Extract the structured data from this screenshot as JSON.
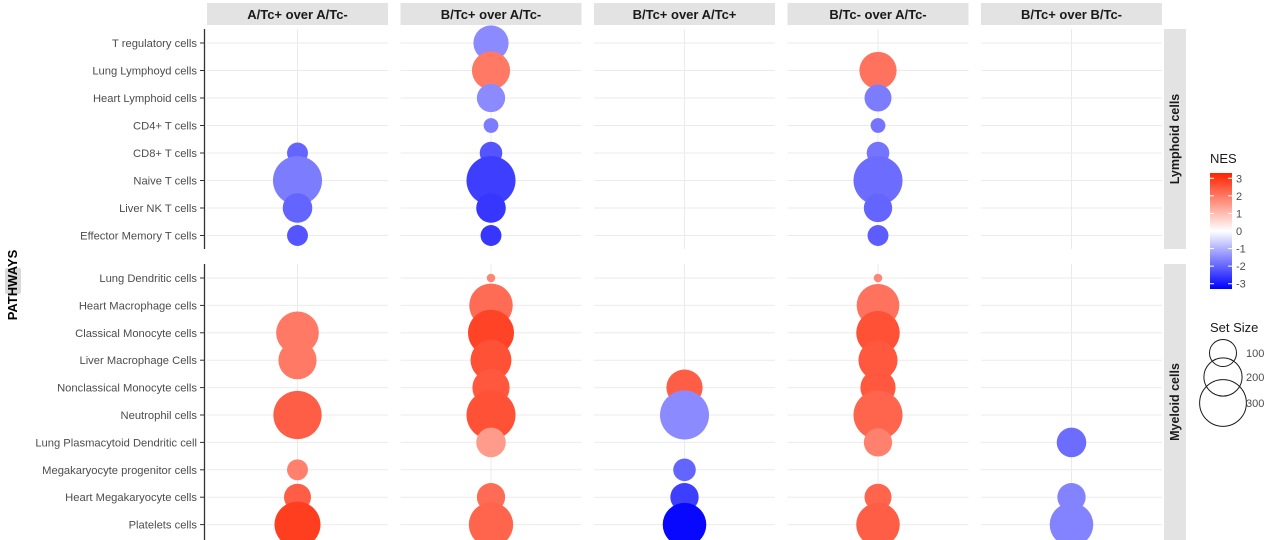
{
  "chart_data": {
    "type": "scatter",
    "y_axis_title": "PATHWAYS",
    "columns": [
      "A/Tc+ over A/Tc-",
      "B/Tc+ over A/Tc-",
      "B/Tc+ over A/Tc+",
      "B/Tc- over A/Tc-",
      "B/Tc+ over B/Tc-"
    ],
    "row_groups": [
      {
        "name": "Lymphoid cells",
        "rows": [
          "T regulatory cells",
          "Lung Lymphoyd cells",
          "Heart Lymphoid cells",
          "CD4+ T cells",
          "CD8+ T cells",
          "Naive T cells",
          "Liver NK T cells",
          "Effector Memory T cells"
        ]
      },
      {
        "name": "Myeloid cells",
        "rows": [
          "Lung Dendritic cells",
          "Heart Macrophage cells",
          "Classical Monocyte cells",
          "Liver Macrophage Cells",
          "Nonclassical Monocyte cells",
          "Neutrophil cells",
          "Lung Plasmacytoid Dendritic cell",
          "Megakaryocyte progenitor cells",
          "Heart Megakaryocyte cells",
          "Platelets cells"
        ]
      }
    ],
    "points": [
      {
        "column": "A/Tc+ over A/Tc-",
        "row": "CD8+ T cells",
        "nes": -2.0,
        "set_size": 60
      },
      {
        "column": "A/Tc+ over A/Tc-",
        "row": "Naive T cells",
        "nes": -1.7,
        "set_size": 330
      },
      {
        "column": "A/Tc+ over A/Tc-",
        "row": "Liver NK T cells",
        "nes": -2.0,
        "set_size": 120
      },
      {
        "column": "A/Tc+ over A/Tc-",
        "row": "Effector Memory T cells",
        "nes": -2.2,
        "set_size": 60
      },
      {
        "column": "A/Tc+ over A/Tc-",
        "row": "Classical Monocyte cells",
        "nes": 2.0,
        "set_size": 250
      },
      {
        "column": "A/Tc+ over A/Tc-",
        "row": "Liver Macrophage Cells",
        "nes": 2.0,
        "set_size": 200
      },
      {
        "column": "A/Tc+ over A/Tc-",
        "row": "Neutrophil cells",
        "nes": 2.4,
        "set_size": 320
      },
      {
        "column": "A/Tc+ over A/Tc-",
        "row": "Megakaryocyte progenitor cells",
        "nes": 1.9,
        "set_size": 60
      },
      {
        "column": "A/Tc+ over A/Tc-",
        "row": "Heart Megakaryocyte cells",
        "nes": 2.4,
        "set_size": 100
      },
      {
        "column": "A/Tc+ over A/Tc-",
        "row": "Platelets cells",
        "nes": 2.9,
        "set_size": 290
      },
      {
        "column": "B/Tc+ over A/Tc-",
        "row": "T regulatory cells",
        "nes": -1.5,
        "set_size": 170
      },
      {
        "column": "B/Tc+ over A/Tc-",
        "row": "Lung Lymphoyd cells",
        "nes": 2.0,
        "set_size": 200
      },
      {
        "column": "B/Tc+ over A/Tc-",
        "row": "Heart Lymphoid cells",
        "nes": -1.5,
        "set_size": 110
      },
      {
        "column": "B/Tc+ over A/Tc-",
        "row": "CD4+ T cells",
        "nes": -1.7,
        "set_size": 30
      },
      {
        "column": "B/Tc+ over A/Tc-",
        "row": "CD8+ T cells",
        "nes": -2.2,
        "set_size": 70
      },
      {
        "column": "B/Tc+ over A/Tc-",
        "row": "Naive T cells",
        "nes": -2.5,
        "set_size": 330
      },
      {
        "column": "B/Tc+ over A/Tc-",
        "row": "Liver NK T cells",
        "nes": -2.6,
        "set_size": 120
      },
      {
        "column": "B/Tc+ over A/Tc-",
        "row": "Effector Memory T cells",
        "nes": -2.6,
        "set_size": 60
      },
      {
        "column": "B/Tc+ over A/Tc-",
        "row": "Lung Dendritic cells",
        "nes": 1.8,
        "set_size": 10
      },
      {
        "column": "B/Tc+ over A/Tc-",
        "row": "Heart Macrophage cells",
        "nes": 2.2,
        "set_size": 260
      },
      {
        "column": "B/Tc+ over A/Tc-",
        "row": "Classical Monocyte cells",
        "nes": 2.8,
        "set_size": 290
      },
      {
        "column": "B/Tc+ over A/Tc-",
        "row": "Liver Macrophage Cells",
        "nes": 2.6,
        "set_size": 230
      },
      {
        "column": "B/Tc+ over A/Tc-",
        "row": "Nonclassical Monocyte cells",
        "nes": 2.5,
        "set_size": 190
      },
      {
        "column": "B/Tc+ over A/Tc-",
        "row": "Neutrophil cells",
        "nes": 2.6,
        "set_size": 330
      },
      {
        "column": "B/Tc+ over A/Tc-",
        "row": "Lung Plasmacytoid Dendritic cell",
        "nes": 1.5,
        "set_size": 120
      },
      {
        "column": "B/Tc+ over A/Tc-",
        "row": "Heart Megakaryocyte cells",
        "nes": 2.2,
        "set_size": 110
      },
      {
        "column": "B/Tc+ over A/Tc-",
        "row": "Platelets cells",
        "nes": 2.3,
        "set_size": 270
      },
      {
        "column": "B/Tc+ over A/Tc+",
        "row": "Nonclassical Monocyte cells",
        "nes": 2.4,
        "set_size": 180
      },
      {
        "column": "B/Tc+ over A/Tc+",
        "row": "Neutrophil cells",
        "nes": -1.5,
        "set_size": 330
      },
      {
        "column": "B/Tc+ over A/Tc+",
        "row": "Megakaryocyte progenitor cells",
        "nes": -2.0,
        "set_size": 70
      },
      {
        "column": "B/Tc+ over A/Tc+",
        "row": "Heart Megakaryocyte cells",
        "nes": -2.5,
        "set_size": 110
      },
      {
        "column": "B/Tc+ over A/Tc+",
        "row": "Platelets cells",
        "nes": -3.2,
        "set_size": 260
      },
      {
        "column": "B/Tc- over A/Tc-",
        "row": "Lung Lymphoyd cells",
        "nes": 2.1,
        "set_size": 190
      },
      {
        "column": "B/Tc- over A/Tc-",
        "row": "Heart Lymphoid cells",
        "nes": -1.7,
        "set_size": 100
      },
      {
        "column": "B/Tc- over A/Tc-",
        "row": "CD4+ T cells",
        "nes": -1.8,
        "set_size": 30
      },
      {
        "column": "B/Tc- over A/Tc-",
        "row": "CD8+ T cells",
        "nes": -1.8,
        "set_size": 70
      },
      {
        "column": "B/Tc- over A/Tc-",
        "row": "Naive T cells",
        "nes": -1.9,
        "set_size": 330
      },
      {
        "column": "B/Tc- over A/Tc-",
        "row": "Liver NK T cells",
        "nes": -2.0,
        "set_size": 110
      },
      {
        "column": "B/Tc- over A/Tc-",
        "row": "Effector Memory T cells",
        "nes": -2.1,
        "set_size": 60
      },
      {
        "column": "B/Tc- over A/Tc-",
        "row": "Lung Dendritic cells",
        "nes": 1.8,
        "set_size": 10
      },
      {
        "column": "B/Tc- over A/Tc-",
        "row": "Heart Macrophage cells",
        "nes": 2.1,
        "set_size": 250
      },
      {
        "column": "B/Tc- over A/Tc-",
        "row": "Classical Monocyte cells",
        "nes": 2.6,
        "set_size": 260
      },
      {
        "column": "B/Tc- over A/Tc-",
        "row": "Liver Macrophage Cells",
        "nes": 2.5,
        "set_size": 210
      },
      {
        "column": "B/Tc- over A/Tc-",
        "row": "Nonclassical Monocyte cells",
        "nes": 2.5,
        "set_size": 170
      },
      {
        "column": "B/Tc- over A/Tc-",
        "row": "Neutrophil cells",
        "nes": 2.3,
        "set_size": 330
      },
      {
        "column": "B/Tc- over A/Tc-",
        "row": "Lung Plasmacytoid Dendritic cell",
        "nes": 1.9,
        "set_size": 110
      },
      {
        "column": "B/Tc- over A/Tc-",
        "row": "Heart Megakaryocyte cells",
        "nes": 2.3,
        "set_size": 100
      },
      {
        "column": "B/Tc- over A/Tc-",
        "row": "Platelets cells",
        "nes": 2.4,
        "set_size": 260
      },
      {
        "column": "B/Tc+ over B/Tc-",
        "row": "Lung Plasmacytoid Dendritic cell",
        "nes": -1.9,
        "set_size": 120
      },
      {
        "column": "B/Tc+ over B/Tc-",
        "row": "Heart Megakaryocyte cells",
        "nes": -1.6,
        "set_size": 110
      },
      {
        "column": "B/Tc+ over B/Tc-",
        "row": "Platelets cells",
        "nes": -1.6,
        "set_size": 260
      }
    ],
    "legend": {
      "color_title": "NES",
      "color_ticks": [
        "3",
        "2",
        "1",
        "0",
        "-1",
        "-2",
        "-3"
      ],
      "color_range": [
        -3.3,
        3.3
      ],
      "low_color": "#0000ff",
      "mid_color": "#ffffff",
      "high_color": "#ff2200",
      "size_title": "Set Size",
      "size_ticks": [
        100,
        200,
        300
      ],
      "position": "right"
    },
    "grid": true
  }
}
